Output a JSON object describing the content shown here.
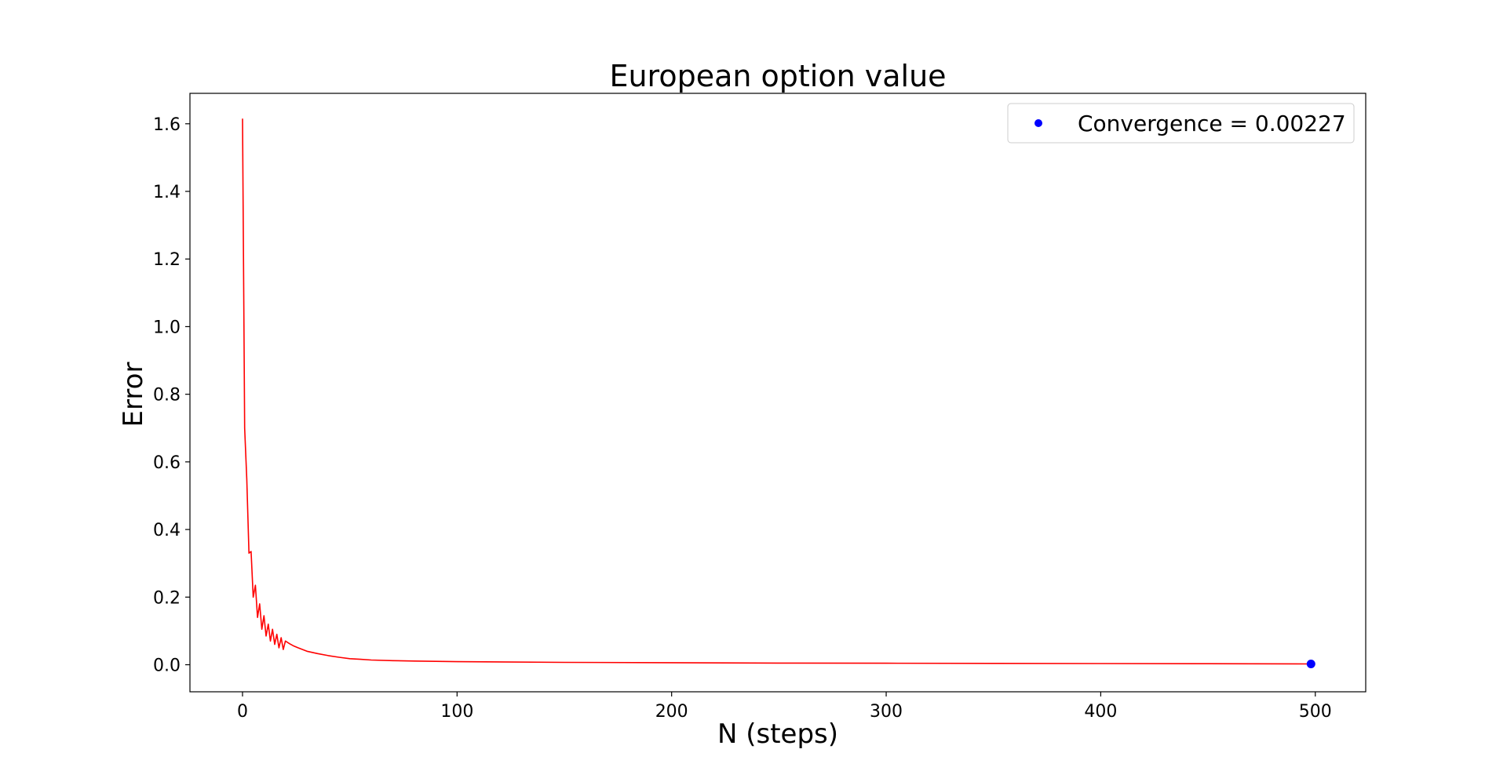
{
  "chart_data": {
    "type": "line",
    "title": "European option value",
    "xlabel": "N (steps)",
    "ylabel": "Error",
    "xlim": [
      -24.5,
      523.5
    ],
    "ylim": [
      -0.08,
      1.69
    ],
    "xticks": [
      0,
      100,
      200,
      300,
      400,
      500
    ],
    "yticks": [
      0.0,
      0.2,
      0.4,
      0.6,
      0.8,
      1.0,
      1.2,
      1.4,
      1.6
    ],
    "xtick_labels": [
      "0",
      "100",
      "200",
      "300",
      "400",
      "500"
    ],
    "ytick_labels": [
      "0.0",
      "0.2",
      "0.4",
      "0.6",
      "0.8",
      "1.0",
      "1.2",
      "1.4",
      "1.6"
    ],
    "grid": false,
    "legend_position": "top-right",
    "series": [
      {
        "color": "#ff0000",
        "style": "line",
        "x": [
          0,
          1,
          2,
          3,
          4,
          5,
          6,
          7,
          8,
          9,
          10,
          11,
          12,
          13,
          14,
          15,
          16,
          17,
          18,
          19,
          20,
          22,
          24,
          26,
          28,
          30,
          35,
          40,
          45,
          50,
          55,
          60,
          70,
          80,
          90,
          100,
          150,
          200,
          250,
          300,
          350,
          400,
          450,
          498
        ],
        "values": [
          1.615,
          0.7,
          0.55,
          0.33,
          0.335,
          0.2,
          0.235,
          0.14,
          0.18,
          0.105,
          0.145,
          0.085,
          0.12,
          0.07,
          0.105,
          0.06,
          0.09,
          0.05,
          0.08,
          0.045,
          0.07,
          0.062,
          0.055,
          0.05,
          0.045,
          0.04,
          0.033,
          0.027,
          0.022,
          0.018,
          0.016,
          0.014,
          0.012,
          0.011,
          0.01,
          0.009,
          0.007,
          0.006,
          0.005,
          0.0045,
          0.004,
          0.0035,
          0.003,
          0.00227
        ]
      },
      {
        "name": "Convergence = 0.00227",
        "color": "#0000ff",
        "style": "point",
        "x": [
          498
        ],
        "values": [
          0.00227
        ]
      }
    ]
  }
}
